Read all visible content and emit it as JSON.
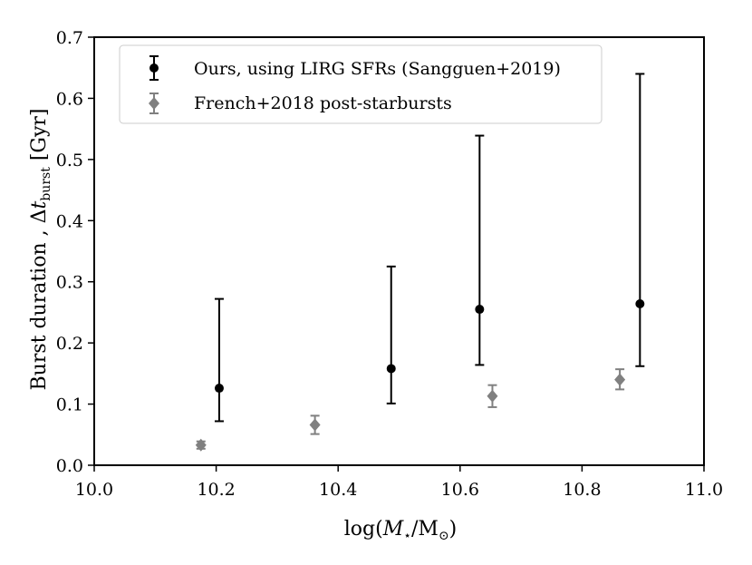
{
  "chart_data": {
    "type": "scatter",
    "xlabel": "log(M⋆/M⊙)",
    "ylabel": "Burst duration , Δt_burst [Gyr]",
    "xlim": [
      10.0,
      11.0
    ],
    "ylim": [
      0.0,
      0.7
    ],
    "x_ticks": [
      "10.0",
      "10.2",
      "10.4",
      "10.6",
      "10.8",
      "11.0"
    ],
    "y_ticks": [
      "0.0",
      "0.1",
      "0.2",
      "0.3",
      "0.4",
      "0.5",
      "0.6",
      "0.7"
    ],
    "grid": false,
    "legend_position": "top-left",
    "series": [
      {
        "name": "Ours, using LIRG SFRs (Sangguen+2019)",
        "marker": "circle",
        "color": "#000000",
        "points": [
          {
            "x": 10.205,
            "y": 0.126,
            "ylow": 0.072,
            "yhigh": 0.272
          },
          {
            "x": 10.487,
            "y": 0.158,
            "ylow": 0.101,
            "yhigh": 0.325
          },
          {
            "x": 10.632,
            "y": 0.255,
            "ylow": 0.164,
            "yhigh": 0.539
          },
          {
            "x": 10.895,
            "y": 0.264,
            "ylow": 0.162,
            "yhigh": 0.64
          }
        ]
      },
      {
        "name": "French+2018 post-starbursts",
        "marker": "diamond",
        "color": "#808080",
        "points": [
          {
            "x": 10.175,
            "y": 0.033,
            "ylow": 0.027,
            "yhigh": 0.039
          },
          {
            "x": 10.362,
            "y": 0.066,
            "ylow": 0.051,
            "yhigh": 0.081
          },
          {
            "x": 10.653,
            "y": 0.113,
            "ylow": 0.095,
            "yhigh": 0.131
          },
          {
            "x": 10.862,
            "y": 0.14,
            "ylow": 0.124,
            "yhigh": 0.157
          }
        ]
      }
    ]
  }
}
